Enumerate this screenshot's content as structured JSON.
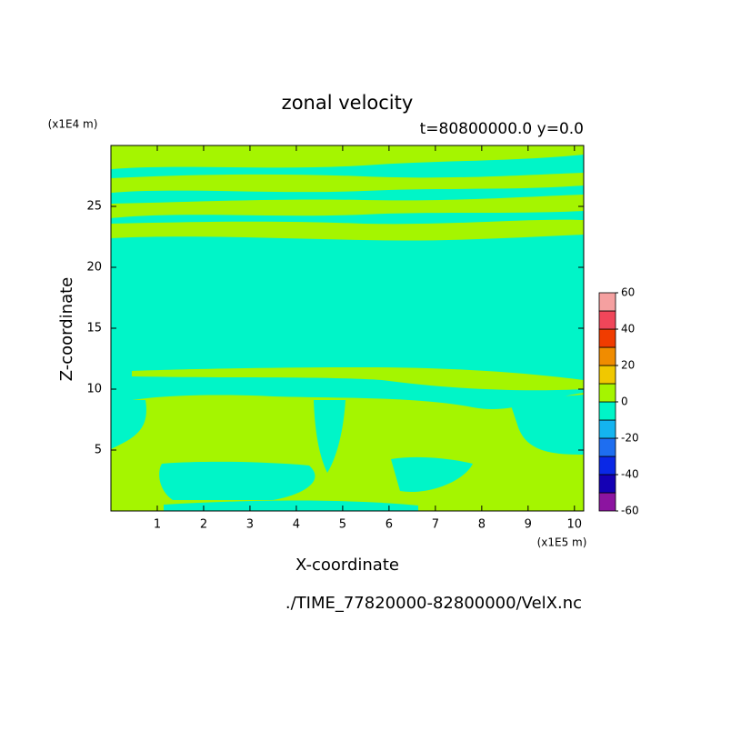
{
  "chart_data": {
    "type": "contour",
    "title": "zonal velocity",
    "subtitle": "t=80800000.0 y=0.0",
    "x_label": "X-coordinate",
    "y_label": "Z-coordinate",
    "x_unit": "(x1E5 m)",
    "y_unit": "(x1E4 m)",
    "footer": "./TIME_77820000-82800000/VelX.nc",
    "xlim": [
      0,
      10.2
    ],
    "ylim": [
      0,
      30
    ],
    "xticks": [
      1,
      2,
      3,
      4,
      5,
      6,
      7,
      8,
      9,
      10
    ],
    "yticks": [
      5,
      10,
      15,
      20,
      25
    ],
    "levels": [
      -60,
      -50,
      -40,
      -30,
      -20,
      -10,
      0,
      10,
      20,
      30,
      40,
      50,
      60
    ],
    "colors": [
      "#8c14a0",
      "#1400b4",
      "#0a28e6",
      "#1e6ef0",
      "#14b4f0",
      "#00f5c8",
      "#a5f500",
      "#f0c800",
      "#f08c00",
      "#f03c00",
      "#f0465a",
      "#f5a0a0"
    ],
    "colorbar_ticks": [
      -60,
      -40,
      -20,
      0,
      20,
      40,
      60
    ]
  }
}
